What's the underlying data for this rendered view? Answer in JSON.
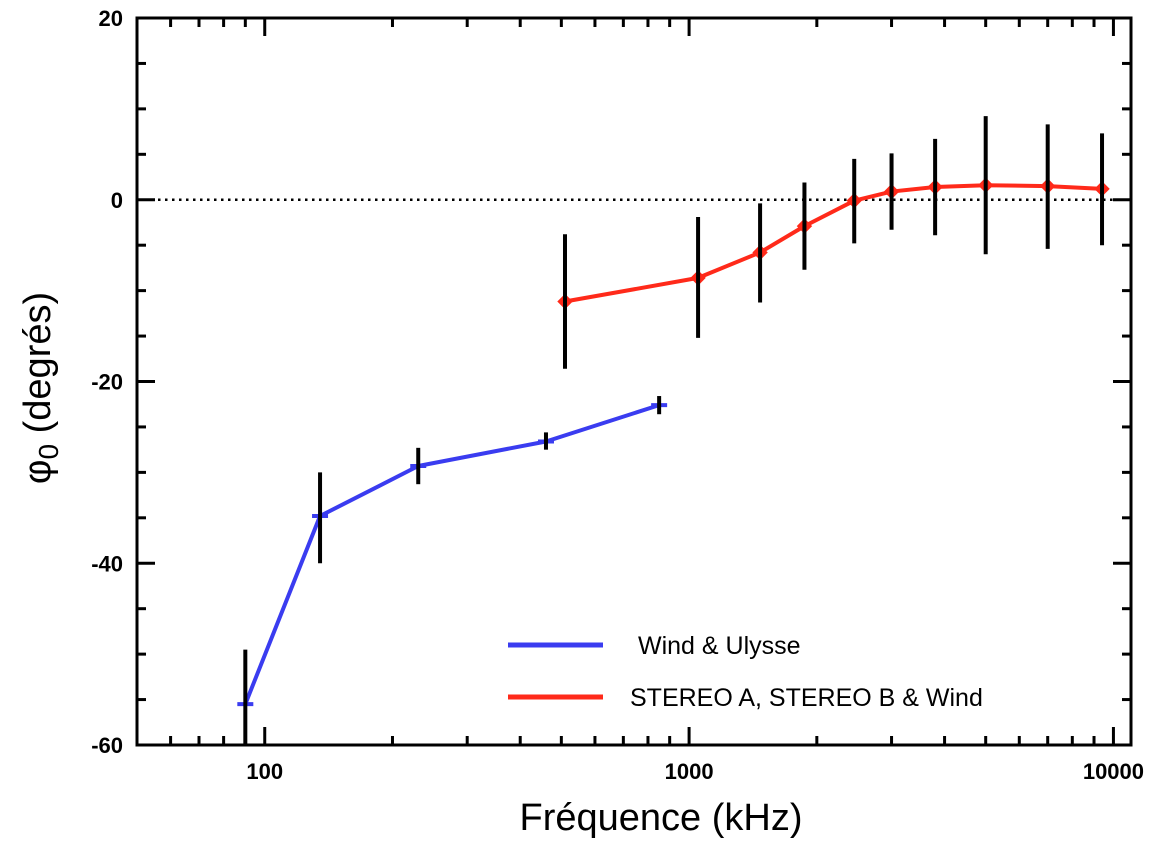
{
  "chart_data": {
    "type": "line",
    "xlabel": "Fréquence (kHz)",
    "ylabel_main": "φ",
    "ylabel_sub": "0",
    "ylabel_rest": " (degrés)",
    "x_scale": "log",
    "xlim": [
      50,
      11000
    ],
    "ylim": [
      -60,
      20
    ],
    "x_ticks": [
      100,
      1000,
      10000
    ],
    "x_tick_labels": [
      "100",
      "1000",
      "10000"
    ],
    "y_ticks": [
      -60,
      -40,
      -20,
      0,
      20
    ],
    "y_tick_labels": [
      "-60",
      "-40",
      "-20",
      "0",
      "20"
    ],
    "reference_line": {
      "y": 0,
      "style": "dotted"
    },
    "grid": false,
    "legend_position": "bottom-right",
    "series": [
      {
        "name": "Wind & Ulysse",
        "color": "#3a3cf0",
        "marker": "none",
        "points": [
          {
            "x": 90,
            "y": -55.5,
            "err_low": -60,
            "err_high": -49.5
          },
          {
            "x": 135,
            "y": -34.8,
            "err_low": -40,
            "err_high": -30
          },
          {
            "x": 230,
            "y": -29.3,
            "err_low": -31.3,
            "err_high": -27.3
          },
          {
            "x": 460,
            "y": -26.6,
            "err_low": -27.5,
            "err_high": -25.6
          },
          {
            "x": 850,
            "y": -22.6,
            "err_low": -23.6,
            "err_high": -21.6
          }
        ]
      },
      {
        "name": "STEREO A, STEREO B & Wind",
        "color": "#ff2a1a",
        "marker": "diamond",
        "points": [
          {
            "x": 510,
            "y": -11.2,
            "err_low": -18.6,
            "err_high": -3.8
          },
          {
            "x": 1050,
            "y": -8.6,
            "err_low": -15.2,
            "err_high": -1.9
          },
          {
            "x": 1470,
            "y": -5.8,
            "err_low": -11.3,
            "err_high": -0.4
          },
          {
            "x": 1870,
            "y": -2.9,
            "err_low": -7.7,
            "err_high": 1.9
          },
          {
            "x": 2450,
            "y": -0.1,
            "err_low": -4.8,
            "err_high": 4.5
          },
          {
            "x": 3000,
            "y": 0.9,
            "err_low": -3.3,
            "err_high": 5.1
          },
          {
            "x": 3800,
            "y": 1.4,
            "err_low": -3.9,
            "err_high": 6.7
          },
          {
            "x": 5000,
            "y": 1.6,
            "err_low": -6.0,
            "err_high": 9.2
          },
          {
            "x": 7000,
            "y": 1.5,
            "err_low": -5.4,
            "err_high": 8.3
          },
          {
            "x": 9400,
            "y": 1.2,
            "err_low": -5.0,
            "err_high": 7.3
          }
        ]
      }
    ]
  }
}
